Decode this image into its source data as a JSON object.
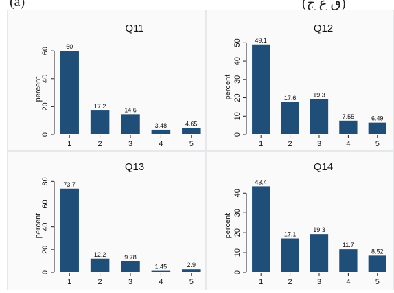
{
  "fragments": {
    "left": "(a)",
    "right": "(ق ع ج)"
  },
  "chart_data": [
    {
      "type": "bar",
      "title": "Q11",
      "ylabel": "percent",
      "categories": [
        "1",
        "2",
        "3",
        "4",
        "5"
      ],
      "values": [
        60,
        17.2,
        14.6,
        3.48,
        4.65
      ],
      "value_labels": [
        "60",
        "17.2",
        "14.6",
        "3.48",
        "4.65"
      ],
      "ylim": [
        0,
        65
      ],
      "yticks": [
        0,
        20,
        40,
        60
      ],
      "grid": false,
      "bar_color": "#1f4e79"
    },
    {
      "type": "bar",
      "title": "Q12",
      "ylabel": "percent",
      "categories": [
        "1",
        "2",
        "3",
        "4",
        "5"
      ],
      "values": [
        49.1,
        17.6,
        19.3,
        7.55,
        6.49
      ],
      "value_labels": [
        "49.1",
        "17.6",
        "19.3",
        "7.55",
        "6.49"
      ],
      "ylim": [
        0,
        52
      ],
      "yticks": [
        0,
        10,
        20,
        30,
        40,
        50
      ],
      "grid": false,
      "bar_color": "#1f4e79"
    },
    {
      "type": "bar",
      "title": "Q13",
      "ylabel": "percent",
      "categories": [
        "1",
        "2",
        "3",
        "4",
        "5"
      ],
      "values": [
        73.7,
        12.2,
        9.78,
        1.45,
        2.9
      ],
      "value_labels": [
        "73.7",
        "12.2",
        "9.78",
        "1.45",
        "2.9"
      ],
      "ylim": [
        0,
        82
      ],
      "yticks": [
        0,
        20,
        40,
        60,
        80
      ],
      "grid": false,
      "bar_color": "#1f4e79"
    },
    {
      "type": "bar",
      "title": "Q14",
      "ylabel": "percent",
      "categories": [
        "1",
        "2",
        "3",
        "4",
        "5"
      ],
      "values": [
        43.4,
        17.1,
        19.3,
        11.7,
        8.52
      ],
      "value_labels": [
        "43.4",
        "17.1",
        "19.3",
        "11.7",
        "8.52"
      ],
      "ylim": [
        0,
        47
      ],
      "yticks": [
        0,
        10,
        20,
        30,
        40
      ],
      "grid": false,
      "bar_color": "#1f4e79"
    }
  ]
}
